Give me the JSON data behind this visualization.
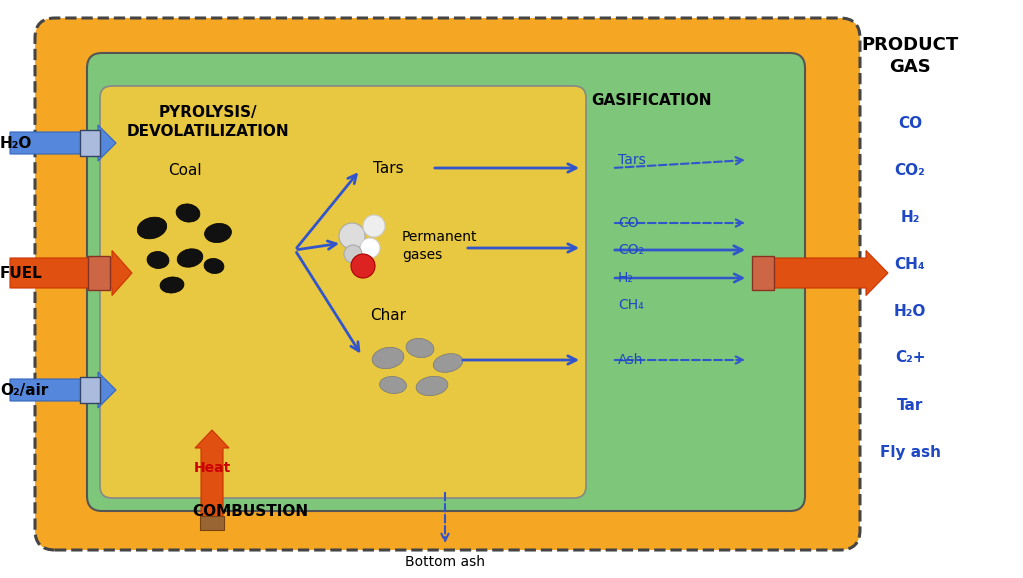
{
  "bg_color": "#FFFFFF",
  "outer_box_color": "#F5A623",
  "inner_box_color": "#7DC67A",
  "pyrolysis_box_color": "#E8C840",
  "pyrolysis_label": "PYROLYSIS/\nDEVOLATILIZATION",
  "gasification_label": "GASIFICATION",
  "combustion_label": "COMBUSTION",
  "coal_label": "Coal",
  "tars_label": "Tars",
  "permanent_gases_label": "Permanent\ngases",
  "char_label": "Char",
  "heat_label": "Heat",
  "h2o_label": "H₂O",
  "fuel_label": "FUEL",
  "o2air_label": "O₂/air",
  "product_gas_label": "PRODUCT\nGAS",
  "bottom_ash_label": "Bottom ash",
  "product_gas_items": [
    "CO",
    "CO₂",
    "H₂",
    "CH₄",
    "H₂O",
    "C₂+",
    "Tar",
    "Fly ash"
  ],
  "gasification_items": [
    "Tars",
    "CO",
    "CO₂",
    "H₂",
    "CH₄",
    "Ash"
  ],
  "arrow_color_blue": "#3355CC",
  "text_color_blue": "#1E47C4",
  "text_color_black": "#000000",
  "text_color_red": "#CC0000",
  "coal_positions": [
    [
      1.52,
      3.5,
      0.3,
      0.21,
      15
    ],
    [
      1.88,
      3.65,
      0.24,
      0.18,
      -10
    ],
    [
      2.18,
      3.45,
      0.27,
      0.19,
      8
    ],
    [
      1.58,
      3.18,
      0.22,
      0.17,
      -5
    ],
    [
      1.9,
      3.2,
      0.26,
      0.18,
      12
    ],
    [
      2.14,
      3.12,
      0.2,
      0.15,
      -8
    ],
    [
      1.72,
      2.93,
      0.24,
      0.16,
      5
    ]
  ],
  "char_positions": [
    [
      3.88,
      2.2,
      0.32,
      0.21,
      10
    ],
    [
      4.2,
      2.3,
      0.28,
      0.19,
      -8
    ],
    [
      4.48,
      2.15,
      0.3,
      0.18,
      12
    ],
    [
      3.93,
      1.93,
      0.27,
      0.17,
      -5
    ],
    [
      4.32,
      1.92,
      0.32,
      0.19,
      8
    ]
  ],
  "ball_data": [
    [
      3.52,
      3.42,
      0.13,
      "#DDDDDD",
      "#AAAAAA"
    ],
    [
      3.74,
      3.52,
      0.11,
      "#EEEEEE",
      "#CCCCCC"
    ],
    [
      3.7,
      3.3,
      0.1,
      "#FFFFFF",
      "#CCCCCC"
    ],
    [
      3.53,
      3.24,
      0.09,
      "#CCCCCC",
      "#AAAAAA"
    ]
  ],
  "red_ball": [
    3.63,
    3.12,
    0.12,
    "#DD2222",
    "#AA0000"
  ]
}
